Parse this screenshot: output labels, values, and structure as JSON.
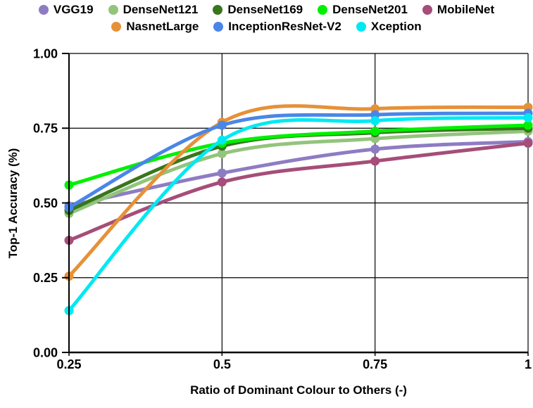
{
  "chart_data": {
    "type": "line",
    "title": "",
    "xlabel": "Ratio of Dominant Colour to Others (-)",
    "ylabel": "Top-1 Accuracy  (%)",
    "x": [
      0.25,
      0.5,
      0.75,
      1
    ],
    "x_tick_labels": [
      "0.25",
      "0.5",
      "0.75",
      "1"
    ],
    "y_ticks": [
      0,
      0.25,
      0.5,
      0.75,
      1
    ],
    "y_tick_labels": [
      "0.00",
      "0.25",
      "0.50",
      "0.75",
      "1.00"
    ],
    "xlim": [
      0.25,
      1
    ],
    "ylim": [
      0,
      1
    ],
    "grid": true,
    "legend_position": "top",
    "axis_color": "#000000",
    "series": [
      {
        "name": "VGG19",
        "color": "#8e7cc3",
        "values": [
          0.49,
          0.6,
          0.68,
          0.705
        ]
      },
      {
        "name": "DenseNet121",
        "color": "#93c47d",
        "values": [
          0.465,
          0.665,
          0.715,
          0.74
        ]
      },
      {
        "name": "DenseNet169",
        "color": "#38761d",
        "values": [
          0.475,
          0.69,
          0.735,
          0.75
        ]
      },
      {
        "name": "DenseNet201",
        "color": "#00f000",
        "values": [
          0.56,
          0.7,
          0.74,
          0.76
        ]
      },
      {
        "name": "MobileNet",
        "color": "#a64d79",
        "values": [
          0.375,
          0.57,
          0.64,
          0.7
        ]
      },
      {
        "name": "NasnetLarge",
        "color": "#e69138",
        "values": [
          0.255,
          0.77,
          0.815,
          0.82
        ]
      },
      {
        "name": "InceptionResNet-V2",
        "color": "#4a86e8",
        "values": [
          0.485,
          0.76,
          0.795,
          0.8
        ]
      },
      {
        "name": "Xception",
        "color": "#00e9f2",
        "values": [
          0.14,
          0.71,
          0.775,
          0.785
        ]
      }
    ]
  }
}
